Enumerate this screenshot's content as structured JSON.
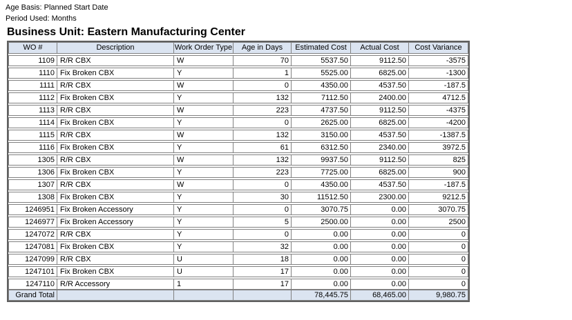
{
  "header": {
    "age_basis": "Age Basis: Planned Start Date",
    "period_used": "Period Used: Months",
    "title": "Business Unit: Eastern Manufacturing Center"
  },
  "table": {
    "columns": [
      "WO #",
      "Description",
      "Work Order Type",
      "Age in Days",
      "Estimated Cost",
      "Actual Cost",
      "Cost Variance"
    ],
    "rows": [
      [
        "1109",
        "R/R CBX",
        "W",
        "70",
        "5537.50",
        "9112.50",
        "-3575"
      ],
      [
        "1110",
        "Fix Broken CBX",
        "Y",
        "1",
        "5525.00",
        "6825.00",
        "-1300"
      ],
      [
        "1111",
        "R/R CBX",
        "W",
        "0",
        "4350.00",
        "4537.50",
        "-187.5"
      ],
      [
        "1112",
        "Fix Broken CBX",
        "Y",
        "132",
        "7112.50",
        "2400.00",
        "4712.5"
      ],
      [
        "1113",
        "R/R CBX",
        "W",
        "223",
        "4737.50",
        "9112.50",
        "-4375"
      ],
      [
        "1114",
        "Fix Broken CBX",
        "Y",
        "0",
        "2625.00",
        "6825.00",
        "-4200"
      ],
      [
        "1115",
        "R/R CBX",
        "W",
        "132",
        "3150.00",
        "4537.50",
        "-1387.5"
      ],
      [
        "1116",
        "Fix Broken CBX",
        "Y",
        "61",
        "6312.50",
        "2340.00",
        "3972.5"
      ],
      [
        "1305",
        "R/R CBX",
        "W",
        "132",
        "9937.50",
        "9112.50",
        "825"
      ],
      [
        "1306",
        "Fix Broken CBX",
        "Y",
        "223",
        "7725.00",
        "6825.00",
        "900"
      ],
      [
        "1307",
        "R/R CBX",
        "W",
        "0",
        "4350.00",
        "4537.50",
        "-187.5"
      ],
      [
        "1308",
        "Fix Broken CBX",
        "Y",
        "30",
        "11512.50",
        "2300.00",
        "9212.5"
      ],
      [
        "1246951",
        "Fix Broken Accessory",
        "Y",
        "0",
        "3070.75",
        "0.00",
        "3070.75"
      ],
      [
        "1246977",
        "Fix Broken Accessory",
        "Y",
        "5",
        "2500.00",
        "0.00",
        "2500"
      ],
      [
        "1247072",
        "R/R CBX",
        "Y",
        "0",
        "0.00",
        "0.00",
        "0"
      ],
      [
        "1247081",
        "Fix Broken CBX",
        "Y",
        "32",
        "0.00",
        "0.00",
        "0"
      ],
      [
        "1247099",
        "R/R CBX",
        "U",
        "18",
        "0.00",
        "0.00",
        "0"
      ],
      [
        "1247101",
        "Fix Broken CBX",
        "U",
        "17",
        "0.00",
        "0.00",
        "0"
      ],
      [
        "1247110",
        "R/R Accessory",
        "1",
        "17",
        "0.00",
        "0.00",
        "0"
      ]
    ],
    "grand_total": {
      "label": "Grand Total",
      "description": "",
      "work_order_type": "",
      "age_in_days": "",
      "estimated_cost": "78,445.75",
      "actual_cost": "68,465.00",
      "cost_variance": "9,980.75"
    }
  },
  "colors": {
    "header_bg": "#dbe4f1",
    "grid_border": "#808080",
    "outer_border": "#5f5f5f",
    "text": "#000000",
    "row_bg": "#ffffff"
  }
}
